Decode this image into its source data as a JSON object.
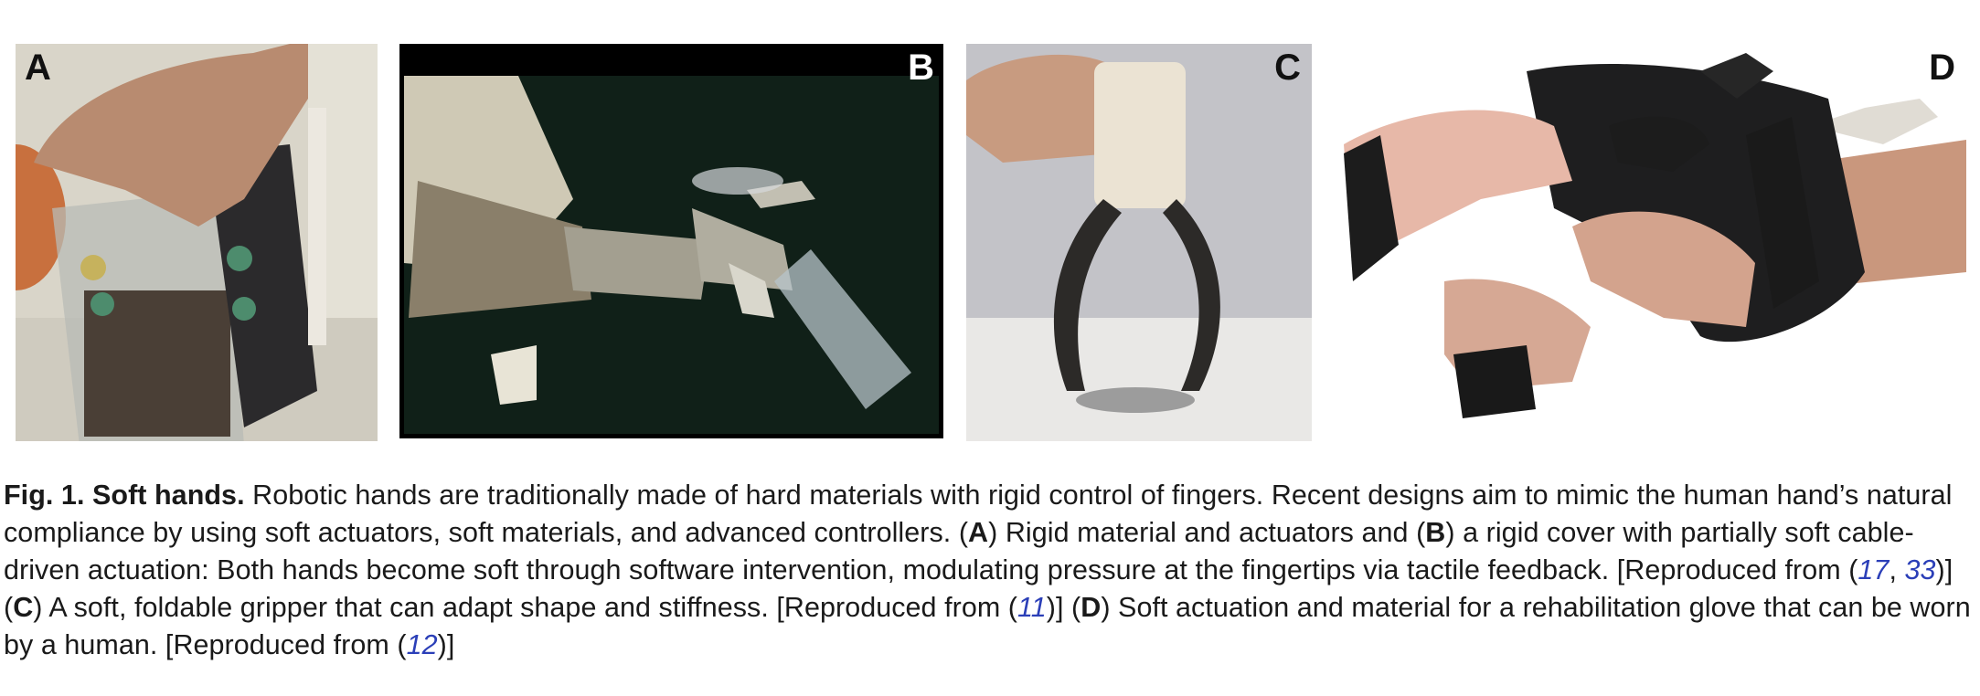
{
  "panels": [
    {
      "letter": "A"
    },
    {
      "letter": "B"
    },
    {
      "letter": "C"
    },
    {
      "letter": "D"
    }
  ],
  "caption": {
    "fig_label": "Fig. 1. Soft hands.",
    "s1": " Robotic hands are traditionally made of hard materials with rigid control of fingers. Recent designs aim to mimic the human hand’s natural compliance by using soft actuators, soft materials, and advanced controllers. (",
    "a": "A",
    "s2": ") Rigid material and actuators and (",
    "b": "B",
    "s3": ") a rigid cover with partially soft cable-driven actuation: Both hands become soft through software intervention, modulating pressure at the fingertips via tactile feedback. [Reproduced from (",
    "ref1": "17",
    "sep": ", ",
    "ref2": "33",
    "s4": ")] (",
    "c": "C",
    "s5": ") A soft, foldable gripper that can adapt shape and stiffness. [Reproduced from (",
    "ref3": "11",
    "s6": ")] (",
    "d": "D",
    "s7": ") Soft actuation and material for a rehabilitation glove that can be worn by a human. [Reproduced from (",
    "ref4": "12",
    "s8": ")]"
  }
}
